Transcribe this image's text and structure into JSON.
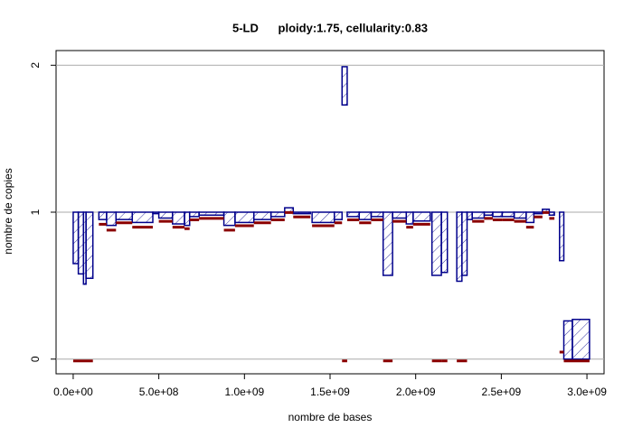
{
  "chart_data": {
    "type": "segments",
    "title": "5-LD      ploidy:1.75, cellularity:0.83",
    "x_label": "nombre de bases",
    "y_label": "nombre de copies",
    "xlim": [
      -100000000.0,
      3100000000.0
    ],
    "ylim": [
      -0.1,
      2.1
    ],
    "xticks": [
      {
        "value": 0,
        "label": "0.0e+00"
      },
      {
        "value": 500000000.0,
        "label": "5.0e+08"
      },
      {
        "value": 1000000000.0,
        "label": "1.0e+09"
      },
      {
        "value": 1500000000.0,
        "label": "1.5e+09"
      },
      {
        "value": 2000000000.0,
        "label": "2.0e+09"
      },
      {
        "value": 2500000000.0,
        "label": "2.5e+09"
      },
      {
        "value": 3000000000.0,
        "label": "3.0e+09"
      }
    ],
    "yticks": [
      0,
      1,
      2
    ],
    "grid": true,
    "series": [
      {
        "color": "#00008b",
        "x_start": [
          0,
          30000000.0,
          60000000.0,
          75000000.0,
          150000000.0,
          195000000.0,
          250000000.0,
          345000000.0,
          465000000.0,
          500000000.0,
          580000000.0,
          650000000.0,
          680000000.0,
          735000000.0,
          880000000.0,
          945000000.0,
          1055000000.0,
          1155000000.0,
          1235000000.0,
          1285000000.0,
          1395000000.0,
          1525000000.0,
          1570000000.0,
          1600000000.0,
          1670000000.0,
          1740000000.0,
          1810000000.0,
          1865000000.0,
          1945000000.0,
          1985000000.0,
          2095000000.0,
          2150000000.0,
          2240000000.0,
          2270000000.0,
          2280000000.0,
          2300000000.0,
          2330000000.0,
          2400000000.0,
          2450000000.0,
          2505000000.0,
          2575000000.0,
          2645000000.0,
          2690000000.0,
          2740000000.0,
          2780000000.0,
          2840000000.0,
          2865000000.0,
          2915000000.0
        ],
        "x_end": [
          30000000.0,
          60000000.0,
          75000000.0,
          115000000.0,
          195000000.0,
          250000000.0,
          345000000.0,
          465000000.0,
          500000000.0,
          580000000.0,
          650000000.0,
          680000000.0,
          735000000.0,
          880000000.0,
          945000000.0,
          1055000000.0,
          1155000000.0,
          1235000000.0,
          1285000000.0,
          1385000000.0,
          1525000000.0,
          1570000000.0,
          1600000000.0,
          1670000000.0,
          1740000000.0,
          1810000000.0,
          1865000000.0,
          1945000000.0,
          1985000000.0,
          2085000000.0,
          2150000000.0,
          2185000000.0,
          2270000000.0,
          2300000000.0,
          2280000000.0,
          2330000000.0,
          2400000000.0,
          2450000000.0,
          2505000000.0,
          2575000000.0,
          2645000000.0,
          2690000000.0,
          2740000000.0,
          2780000000.0,
          2810000000.0,
          2865000000.0,
          2915000000.0,
          3015000000.0
        ],
        "base": [
          1,
          1,
          1,
          1,
          1,
          1,
          1,
          1,
          1,
          1,
          1,
          1,
          1,
          1,
          1,
          1,
          1,
          1,
          1,
          1,
          1,
          1,
          1.73,
          1,
          1,
          1,
          1,
          1,
          1,
          1,
          1,
          1,
          1,
          1,
          0,
          1,
          1,
          1,
          1,
          1,
          1,
          1,
          1,
          1,
          1,
          1,
          0,
          0
        ],
        "values": [
          0.65,
          0.58,
          0.51,
          0.55,
          0.95,
          0.91,
          0.95,
          0.93,
          0.99,
          0.96,
          0.92,
          0.91,
          0.97,
          0.98,
          0.91,
          0.93,
          0.95,
          0.97,
          1.03,
          0.99,
          0.93,
          0.95,
          1.99,
          0.97,
          0.95,
          0.97,
          0.57,
          0.96,
          0.92,
          0.94,
          0.57,
          0.59,
          0.53,
          0.57,
          0.5,
          0.95,
          0.96,
          0.98,
          0.97,
          0.97,
          0.96,
          0.93,
          0.99,
          1.02,
          0.98,
          0.67,
          0.26,
          0.27
        ]
      },
      {
        "color": "#8b0000",
        "x_start": [
          0,
          150000000.0,
          195000000.0,
          250000000.0,
          345000000.0,
          500000000.0,
          580000000.0,
          650000000.0,
          680000000.0,
          735000000.0,
          880000000.0,
          945000000.0,
          1055000000.0,
          1155000000.0,
          1235000000.0,
          1285000000.0,
          1395000000.0,
          1525000000.0,
          1570000000.0,
          1600000000.0,
          1670000000.0,
          1740000000.0,
          1810000000.0,
          1865000000.0,
          1945000000.0,
          1985000000.0,
          2095000000.0,
          2150000000.0,
          2240000000.0,
          2330000000.0,
          2400000000.0,
          2450000000.0,
          2505000000.0,
          2575000000.0,
          2645000000.0,
          2690000000.0,
          2740000000.0,
          2780000000.0,
          2840000000.0,
          2865000000.0
        ],
        "x_end": [
          115000000.0,
          195000000.0,
          250000000.0,
          345000000.0,
          465000000.0,
          580000000.0,
          650000000.0,
          680000000.0,
          735000000.0,
          880000000.0,
          945000000.0,
          1055000000.0,
          1155000000.0,
          1235000000.0,
          1285000000.0,
          1385000000.0,
          1525000000.0,
          1570000000.0,
          1600000000.0,
          1670000000.0,
          1740000000.0,
          1810000000.0,
          1865000000.0,
          1945000000.0,
          1985000000.0,
          2085000000.0,
          2150000000.0,
          2185000000.0,
          2300000000.0,
          2400000000.0,
          2450000000.0,
          2505000000.0,
          2575000000.0,
          2645000000.0,
          2690000000.0,
          2740000000.0,
          2780000000.0,
          2810000000.0,
          2865000000.0,
          3015000000.0
        ],
        "values": [
          0,
          0.93,
          0.89,
          0.94,
          0.91,
          0.95,
          0.91,
          0.9,
          0.96,
          0.97,
          0.89,
          0.92,
          0.94,
          0.96,
          1.01,
          0.98,
          0.92,
          0.94,
          0,
          0.96,
          0.94,
          0.96,
          0,
          0.95,
          0.91,
          0.93,
          0,
          0,
          0,
          0.95,
          0.97,
          0.96,
          0.96,
          0.95,
          0.91,
          0.98,
          1.01,
          0.97,
          0.06,
          0
        ]
      }
    ]
  }
}
